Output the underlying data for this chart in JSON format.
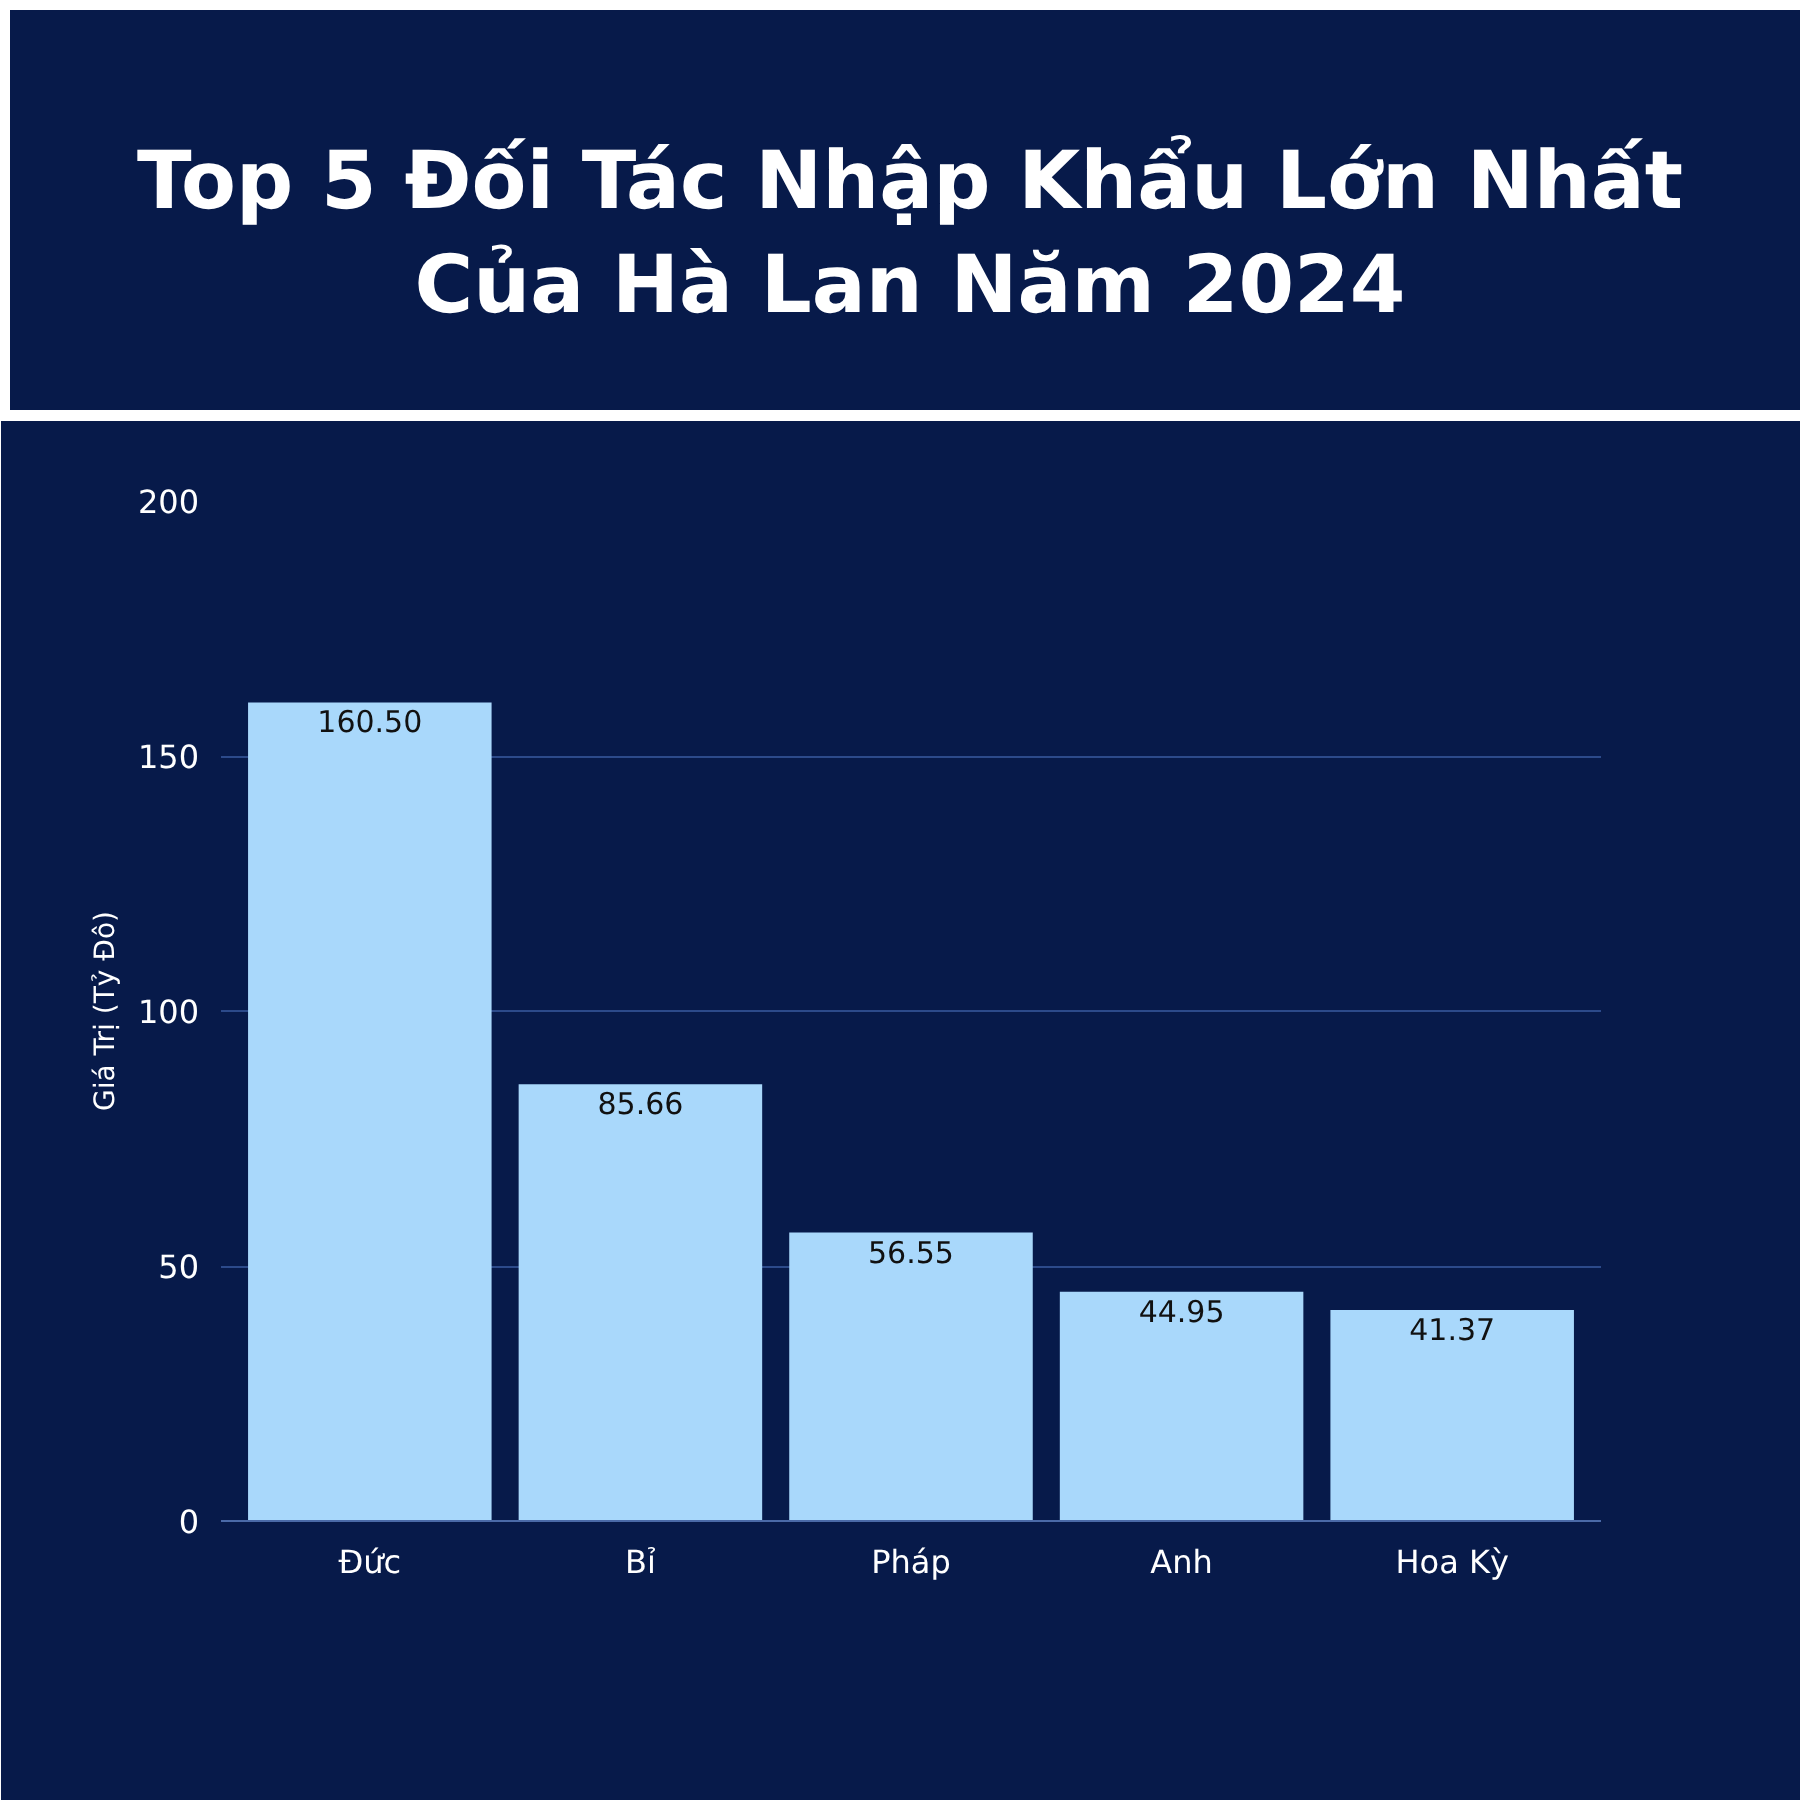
{
  "chart_data": {
    "type": "bar",
    "title": "Top 5 Đối Tác Nhập Khẩu Lớn Nhất Của Hà Lan Năm 2024",
    "ylabel": "Giá Trị (Tỷ Đô)",
    "categories": [
      "Đức",
      "Bỉ",
      "Pháp",
      "Anh",
      "Hoa Kỳ"
    ],
    "values": [
      160.5,
      85.66,
      56.55,
      44.95,
      41.37
    ],
    "value_labels": [
      "160.50",
      "85.66",
      "56.55",
      "44.95",
      "41.37"
    ],
    "color": "#a9d8fb",
    "ylim": [
      0,
      200
    ],
    "yticks": [
      0,
      50,
      100,
      150,
      200
    ],
    "grid": "y"
  }
}
